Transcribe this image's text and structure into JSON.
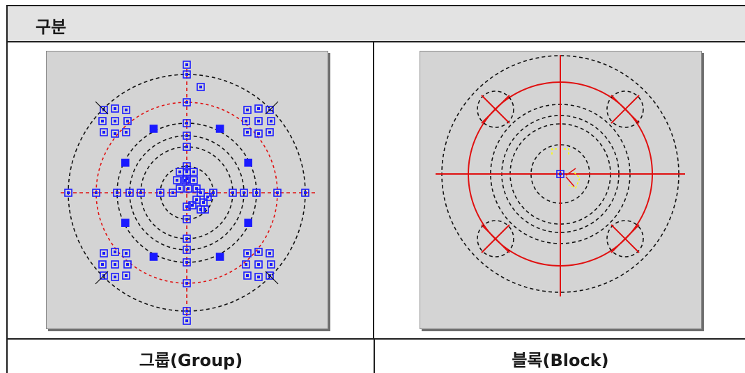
{
  "header": {
    "label": "구분"
  },
  "columns": [
    {
      "caption": "그룹(Group)"
    },
    {
      "caption": "블록(Block)"
    }
  ],
  "colors": {
    "panel_bg": "#d4d4d4",
    "black_dash": "#111111",
    "red": "#e01010",
    "blue_grip": "#1a1aff",
    "yellow": "#ffff00"
  },
  "icons": {
    "group_view": "cad-drawing-with-blue-grips",
    "block_view": "cad-drawing-with-block-selection"
  }
}
